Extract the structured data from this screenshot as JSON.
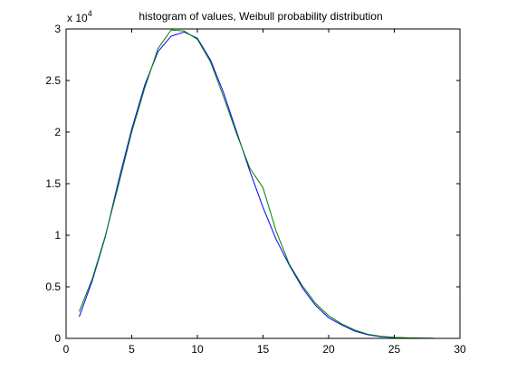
{
  "chart_data": {
    "type": "line",
    "title": "histogram of values, Weibull probability distribution",
    "xlabel": "",
    "ylabel": "",
    "xlim": [
      0,
      30
    ],
    "ylim": [
      0,
      30000
    ],
    "x_ticks": [
      0,
      5,
      10,
      15,
      20,
      25,
      30
    ],
    "y_ticks": [
      0,
      5000,
      10000,
      15000,
      20000,
      25000,
      30000
    ],
    "y_tick_labels": [
      "0",
      "0.5",
      "1",
      "1.5",
      "2",
      "2.5",
      "3"
    ],
    "y_multiplier_base": "x 10",
    "y_multiplier_exponent": "4",
    "grid": false,
    "legend": false,
    "series": [
      {
        "color": "#0000ff",
        "x": [
          1,
          2,
          3,
          4,
          5,
          6,
          7,
          8,
          9,
          10,
          11,
          12,
          13,
          14,
          15,
          16,
          17,
          18,
          19,
          20,
          21,
          22,
          23,
          24,
          25,
          26,
          27,
          28
        ],
        "values": [
          2100,
          5600,
          9900,
          15300,
          20300,
          24600,
          27800,
          29300,
          29700,
          29100,
          27000,
          23800,
          20000,
          16200,
          12700,
          9600,
          7100,
          4900,
          3200,
          2000,
          1300,
          700,
          350,
          150,
          80,
          40,
          20,
          10
        ]
      },
      {
        "color": "#008000",
        "x": [
          1,
          2,
          3,
          4,
          5,
          6,
          7,
          8,
          9,
          10,
          11,
          12,
          13,
          14,
          15,
          16,
          17,
          18,
          19,
          20,
          21,
          22,
          23,
          24,
          25,
          26,
          27,
          28
        ],
        "values": [
          2600,
          5800,
          10000,
          14900,
          20000,
          24300,
          28100,
          29900,
          29800,
          29000,
          26800,
          23400,
          19800,
          16500,
          14600,
          10400,
          7200,
          5100,
          3400,
          2200,
          1400,
          800,
          400,
          200,
          100,
          50,
          25,
          10
        ]
      }
    ]
  }
}
